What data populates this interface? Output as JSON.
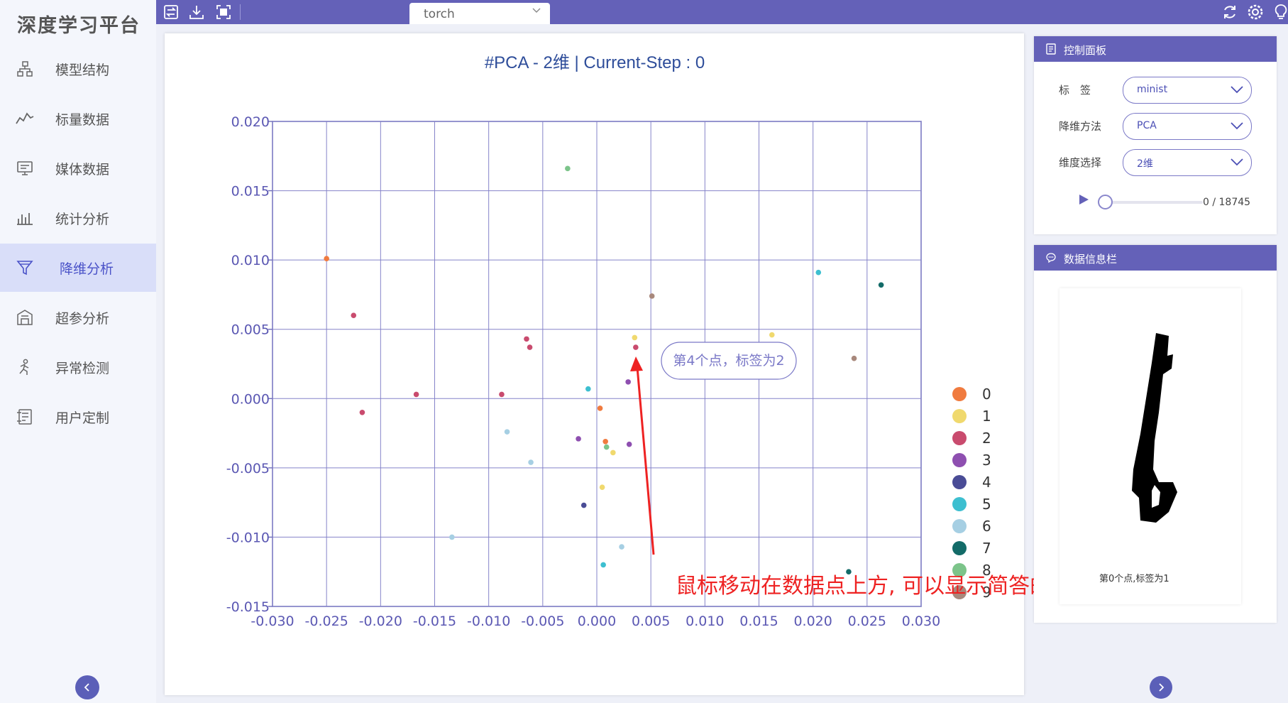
{
  "app": {
    "title": "深度学习平台"
  },
  "sidebar": {
    "items": [
      {
        "label": "模型结构",
        "icon": "model-structure-icon"
      },
      {
        "label": "标量数据",
        "icon": "line-chart-icon"
      },
      {
        "label": "媒体数据",
        "icon": "monitor-icon"
      },
      {
        "label": "统计分析",
        "icon": "bar-chart-icon"
      },
      {
        "label": "降维分析",
        "icon": "funnel-icon",
        "active": true
      },
      {
        "label": "超参分析",
        "icon": "building-icon"
      },
      {
        "label": "异常检测",
        "icon": "person-run-icon"
      },
      {
        "label": "用户定制",
        "icon": "custom-panel-icon"
      }
    ],
    "collapse_icon": "chevron-left-icon"
  },
  "topbar": {
    "tab_label": "torch",
    "left_icons": [
      "switch-icon",
      "download-icon",
      "fullscreen-icon"
    ],
    "right_icons": [
      "refresh-icon",
      "settings-icon",
      "lightbulb-icon"
    ]
  },
  "control_panel": {
    "title": "控制面板",
    "fields": [
      {
        "label": "标　签",
        "value": "minist"
      },
      {
        "label": "降维方法",
        "value": "PCA"
      },
      {
        "label": "维度选择",
        "value": "2维"
      }
    ],
    "slider": {
      "current": 0,
      "total": 18745,
      "readout": "0 / 18745",
      "fraction": 0
    }
  },
  "info_panel": {
    "title": "数据信息栏",
    "caption": "第0个点,标签为1"
  },
  "collapse_right_icon": "chevron-right-icon",
  "tooltip": {
    "text": "第4个点，标签为2"
  },
  "annotation": {
    "text": "鼠标移动在数据点上方, 可以显示简答的标签数据",
    "color": "#ee2222"
  },
  "chart_data": {
    "type": "scatter",
    "title": "#PCA - 2维 | Current-Step : 0",
    "xlabel": "",
    "ylabel": "",
    "xlim": [
      -0.03,
      0.03
    ],
    "ylim": [
      -0.015,
      0.02
    ],
    "xticks": [
      "-0.030",
      "-0.025",
      "-0.020",
      "-0.015",
      "-0.010",
      "-0.005",
      "0.000",
      "0.005",
      "0.010",
      "0.015",
      "0.020",
      "0.025",
      "0.030"
    ],
    "yticks": [
      "0.020",
      "0.015",
      "0.010",
      "0.005",
      "0.000",
      "-0.005",
      "-0.010",
      "-0.015"
    ],
    "grid": true,
    "legend_position": "right",
    "series": [
      {
        "name": "0",
        "color": "#f07b3f",
        "points": [
          [
            -0.025,
            0.0101
          ],
          [
            0.0003,
            -0.0007
          ],
          [
            0.0008,
            -0.0031
          ]
        ]
      },
      {
        "name": "1",
        "color": "#f0d96e",
        "points": [
          [
            0.0035,
            0.0044
          ],
          [
            0.0015,
            -0.0039
          ],
          [
            0.0005,
            -0.0064
          ],
          [
            0.0162,
            0.0046
          ]
        ]
      },
      {
        "name": "2",
        "color": "#c94b6e",
        "points": [
          [
            -0.0225,
            0.006
          ],
          [
            -0.0217,
            -0.001
          ],
          [
            -0.0167,
            0.0003
          ],
          [
            -0.0088,
            0.0003
          ],
          [
            -0.0065,
            0.0043
          ],
          [
            -0.0062,
            0.0037
          ],
          [
            0.0036,
            0.0037
          ]
        ]
      },
      {
        "name": "3",
        "color": "#8e4fb0",
        "points": [
          [
            -0.0017,
            -0.0029
          ],
          [
            0.0029,
            0.0012
          ],
          [
            0.003,
            -0.0033
          ]
        ]
      },
      {
        "name": "4",
        "color": "#4a4c96",
        "points": [
          [
            -0.0012,
            -0.0077
          ]
        ]
      },
      {
        "name": "5",
        "color": "#3dbfd0",
        "points": [
          [
            -0.0008,
            0.0007
          ],
          [
            0.0006,
            -0.012
          ],
          [
            0.0205,
            0.0091
          ]
        ]
      },
      {
        "name": "6",
        "color": "#a6cfe3",
        "points": [
          [
            -0.0083,
            -0.0024
          ],
          [
            -0.0061,
            -0.0046
          ],
          [
            -0.0134,
            -0.01
          ],
          [
            0.0023,
            -0.0107
          ]
        ]
      },
      {
        "name": "7",
        "color": "#136b68",
        "points": [
          [
            0.0263,
            0.0082
          ],
          [
            0.0233,
            -0.0125
          ]
        ]
      },
      {
        "name": "8",
        "color": "#7cc48a",
        "points": [
          [
            -0.0027,
            0.0166
          ],
          [
            0.0009,
            -0.0035
          ]
        ]
      },
      {
        "name": "9",
        "color": "#a8887c",
        "points": [
          [
            0.0051,
            0.0074
          ],
          [
            0.0238,
            0.0029
          ]
        ]
      }
    ]
  }
}
